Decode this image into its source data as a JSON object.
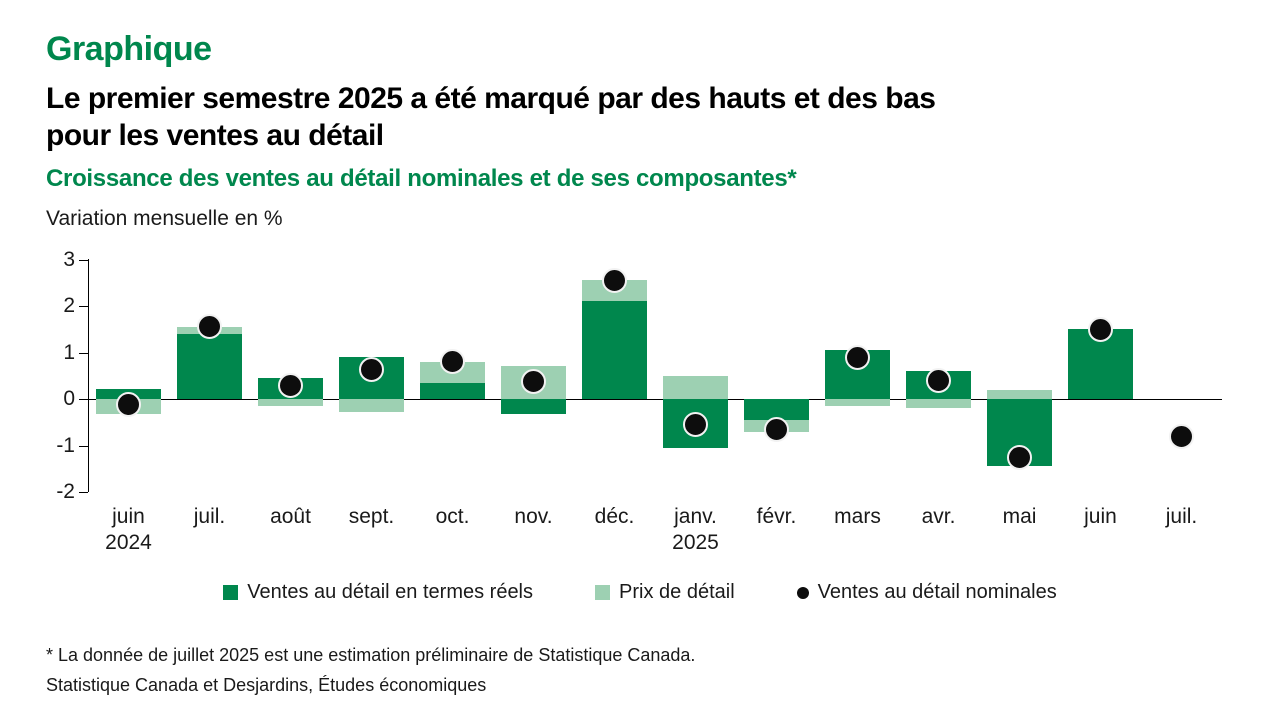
{
  "header": {
    "kicker": "Graphique",
    "title_line1": "Le premier semestre 2025 a été marqué par des hauts et des bas",
    "title_line2": "pour les ventes au détail",
    "subtitle": "Croissance des ventes au détail nominales et de ses composantes*",
    "unit_label": "Variation mensuelle en %"
  },
  "colors": {
    "heading_green": "#00874D",
    "real_bar_green": "#00874D",
    "price_bar_green": "#9DD0B2",
    "nominal_dot_black": "#0d0d0d"
  },
  "chart_data": {
    "type": "bar",
    "stacked": true,
    "overlay": "scatter",
    "title": "Croissance des ventes au détail nominales et de ses composantes*",
    "ylabel": "Variation mensuelle en %",
    "xlabel": "",
    "ylim": [
      -2,
      3
    ],
    "yticks": [
      3,
      2,
      1,
      0,
      -1,
      -2
    ],
    "grid": false,
    "legend_position": "bottom",
    "categories": [
      "juin",
      "juil.",
      "août",
      "sept.",
      "oct.",
      "nov.",
      "déc.",
      "janv.",
      "févr.",
      "mars",
      "avr.",
      "mai",
      "juin",
      "juil."
    ],
    "category_year_labels": [
      {
        "index": 0,
        "label": "2024"
      },
      {
        "index": 7,
        "label": "2025"
      }
    ],
    "series": [
      {
        "name": "Ventes au détail en termes réels",
        "type": "bar",
        "color": "#00874D",
        "values": [
          0.22,
          1.4,
          0.45,
          0.9,
          0.35,
          -0.33,
          2.1,
          -1.05,
          -0.45,
          1.05,
          0.6,
          -1.45,
          1.5,
          null
        ]
      },
      {
        "name": "Prix de détail",
        "type": "bar",
        "color": "#9DD0B2",
        "values": [
          -0.33,
          0.15,
          -0.15,
          -0.27,
          0.45,
          0.7,
          0.45,
          0.5,
          -0.25,
          -0.15,
          -0.2,
          0.2,
          0,
          null
        ]
      },
      {
        "name": "Ventes au détail nominales",
        "type": "scatter",
        "color": "#0d0d0d",
        "values": [
          -0.11,
          1.55,
          0.3,
          0.63,
          0.8,
          0.37,
          2.55,
          -0.55,
          -0.65,
          0.9,
          0.4,
          -1.25,
          1.5,
          -0.8
        ]
      }
    ]
  },
  "legend": {
    "items": [
      {
        "label": "Ventes au détail en termes réels",
        "marker": "dark-green-square"
      },
      {
        "label": "Prix de détail",
        "marker": "light-green-square"
      },
      {
        "label": "Ventes au détail nominales",
        "marker": "black-dot"
      }
    ]
  },
  "footnotes": {
    "note": "* La donnée de juillet 2025 est une estimation préliminaire de Statistique Canada.",
    "source": "Statistique Canada et Desjardins, Études économiques"
  }
}
